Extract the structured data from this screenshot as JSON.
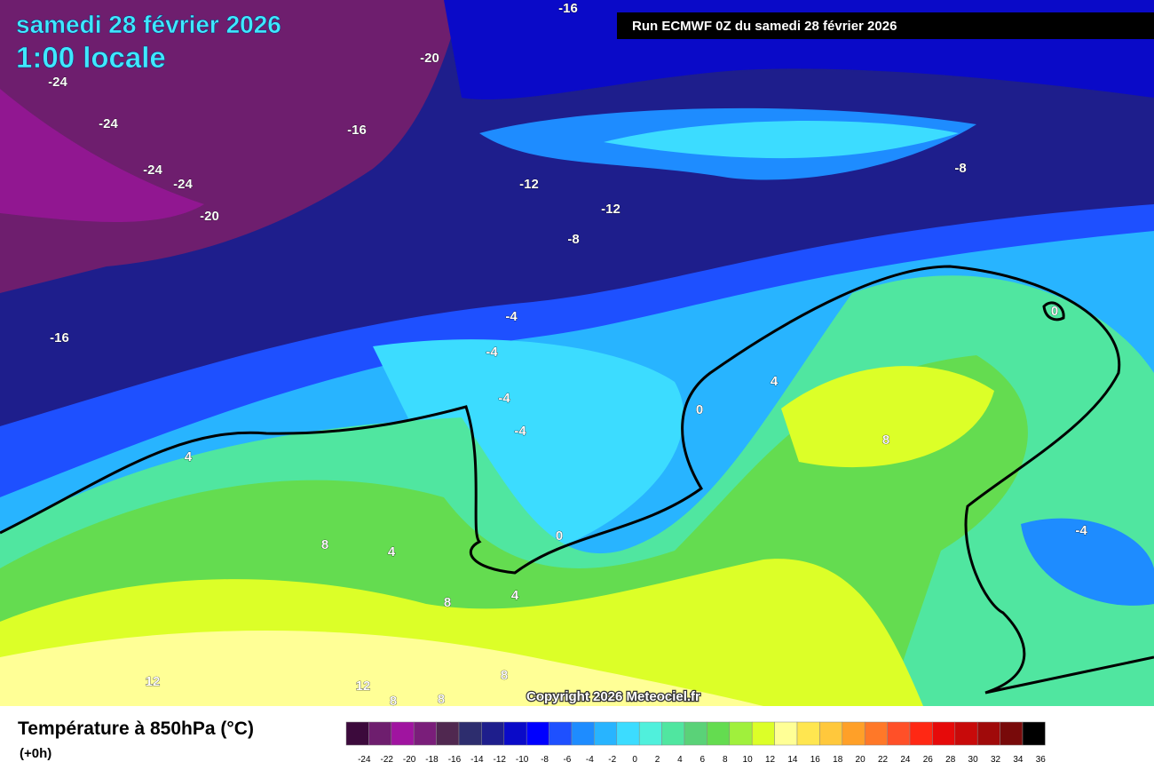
{
  "header": {
    "date": "samedi 28 février 2026",
    "time": "1:00 locale",
    "run": "Run ECMWF 0Z du samedi 28 février 2026"
  },
  "map": {
    "contour_labels": [
      -16,
      -20,
      -24,
      -24,
      -16,
      -24,
      -24,
      -20,
      -12,
      -12,
      -8,
      -8,
      -16,
      -4,
      -4,
      -4,
      -4,
      4,
      0,
      4,
      0,
      8,
      8,
      4,
      0,
      -4,
      8,
      4,
      12,
      12,
      8,
      8,
      8
    ],
    "copyright": "Copyright 2026 Meteociel.fr"
  },
  "legend": {
    "title": "Température à 850hPa (°C)",
    "subtitle": "(+0h)",
    "values": [
      -24,
      -22,
      -20,
      -18,
      -16,
      -14,
      -12,
      -10,
      -8,
      -6,
      -4,
      -2,
      0,
      2,
      4,
      6,
      8,
      10,
      12,
      14,
      16,
      18,
      20,
      22,
      24,
      26,
      28,
      30,
      32,
      34,
      36
    ],
    "colors": [
      "#3c0a3c",
      "#6e1e6e",
      "#a014a0",
      "#7a1e7a",
      "#502850",
      "#2d2d6e",
      "#1e1e8c",
      "#0a0ac8",
      "#0000ff",
      "#1e50ff",
      "#1e8cff",
      "#28b4ff",
      "#3cdcff",
      "#50f0dc",
      "#50e6a0",
      "#5ad278",
      "#64dc50",
      "#a0f03c",
      "#dcff28",
      "#ffff96",
      "#ffe650",
      "#ffc83c",
      "#ffa028",
      "#ff7828",
      "#ff5028",
      "#ff2814",
      "#e60a0a",
      "#c80a0a",
      "#a00a0a",
      "#780a0a",
      "#000000"
    ]
  }
}
